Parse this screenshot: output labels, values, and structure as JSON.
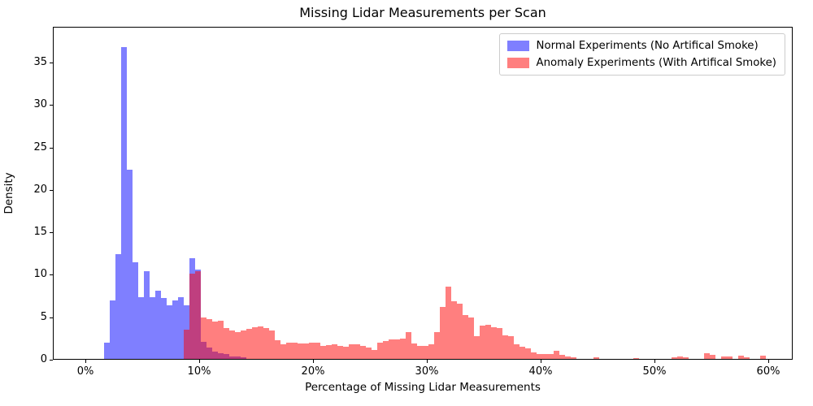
{
  "title": "Missing Lidar Measurements per Scan",
  "axes": {
    "xlabel": "Percentage of Missing Lidar Measurements",
    "ylabel": "Density",
    "x_ticks": [
      {
        "value": 0,
        "label": "0%"
      },
      {
        "value": 10,
        "label": "10%"
      },
      {
        "value": 20,
        "label": "20%"
      },
      {
        "value": 30,
        "label": "30%"
      },
      {
        "value": 40,
        "label": "40%"
      },
      {
        "value": 50,
        "label": "50%"
      },
      {
        "value": 60,
        "label": "60%"
      }
    ],
    "y_ticks": [
      {
        "value": 0,
        "label": "0"
      },
      {
        "value": 5,
        "label": "5"
      },
      {
        "value": 10,
        "label": "10"
      },
      {
        "value": 15,
        "label": "15"
      },
      {
        "value": 20,
        "label": "20"
      },
      {
        "value": 25,
        "label": "25"
      },
      {
        "value": 30,
        "label": "30"
      },
      {
        "value": 35,
        "label": "35"
      }
    ]
  },
  "legend": {
    "entries": [
      {
        "label": "Normal Experiments (No Artifical Smoke)",
        "color": "rgba(0,0,255,0.5)"
      },
      {
        "label": "Anomaly Experiments (With Artifical Smoke)",
        "color": "rgba(255,0,0,0.5)"
      }
    ]
  },
  "chart_data": {
    "type": "bar",
    "subtype": "overlapping-histograms",
    "title": "Missing Lidar Measurements per Scan",
    "xlabel": "Percentage of Missing Lidar Measurements",
    "ylabel": "Density",
    "xlim_percent": [
      -2.9,
      62.1
    ],
    "ylim": [
      0,
      39.2
    ],
    "grid": false,
    "legend_position": "upper right",
    "bin_width_percent": 0.5,
    "series": [
      {
        "name": "Normal Experiments (No Artifical Smoke)",
        "color": "rgba(0,0,255,0.5)",
        "bars_x_height": [
          [
            1.6,
            1.9
          ],
          [
            2.1,
            6.9
          ],
          [
            2.6,
            12.3
          ],
          [
            3.1,
            36.7
          ],
          [
            3.6,
            22.3
          ],
          [
            4.1,
            11.4
          ],
          [
            4.6,
            7.3
          ],
          [
            5.1,
            10.3
          ],
          [
            5.6,
            7.3
          ],
          [
            6.1,
            8.0
          ],
          [
            6.6,
            7.2
          ],
          [
            7.1,
            6.3
          ],
          [
            7.6,
            6.9
          ],
          [
            8.1,
            7.3
          ],
          [
            8.6,
            6.3
          ],
          [
            9.1,
            11.9
          ],
          [
            9.6,
            10.5
          ],
          [
            10.1,
            2.0
          ],
          [
            10.6,
            1.3
          ],
          [
            11.1,
            0.9
          ],
          [
            11.6,
            0.7
          ],
          [
            12.1,
            0.55
          ],
          [
            12.6,
            0.3
          ],
          [
            13.1,
            0.25
          ],
          [
            13.6,
            0.15
          ]
        ]
      },
      {
        "name": "Anomaly Experiments (With Artifical Smoke)",
        "color": "rgba(255,0,0,0.5)",
        "bars_x_height": [
          [
            8.6,
            3.4
          ],
          [
            9.1,
            10.0
          ],
          [
            9.6,
            10.3
          ],
          [
            10.1,
            4.85
          ],
          [
            10.6,
            4.7
          ],
          [
            11.1,
            4.4
          ],
          [
            11.6,
            4.5
          ],
          [
            12.1,
            3.6
          ],
          [
            12.6,
            3.3
          ],
          [
            13.1,
            3.15
          ],
          [
            13.6,
            3.3
          ],
          [
            14.1,
            3.5
          ],
          [
            14.6,
            3.7
          ],
          [
            15.1,
            3.85
          ],
          [
            15.6,
            3.6
          ],
          [
            16.1,
            3.3
          ],
          [
            16.6,
            2.2
          ],
          [
            17.1,
            1.7
          ],
          [
            17.6,
            1.9
          ],
          [
            18.1,
            1.95
          ],
          [
            18.6,
            1.8
          ],
          [
            19.1,
            1.85
          ],
          [
            19.6,
            1.9
          ],
          [
            20.1,
            1.9
          ],
          [
            20.6,
            1.55
          ],
          [
            21.1,
            1.65
          ],
          [
            21.6,
            1.7
          ],
          [
            22.1,
            1.5
          ],
          [
            22.6,
            1.45
          ],
          [
            23.1,
            1.7
          ],
          [
            23.6,
            1.75
          ],
          [
            24.1,
            1.5
          ],
          [
            24.6,
            1.35
          ],
          [
            25.1,
            1.1
          ],
          [
            25.6,
            1.95
          ],
          [
            26.1,
            2.1
          ],
          [
            26.6,
            2.25
          ],
          [
            27.1,
            2.25
          ],
          [
            27.6,
            2.35
          ],
          [
            28.1,
            3.15
          ],
          [
            28.6,
            1.8
          ],
          [
            29.1,
            1.55
          ],
          [
            29.6,
            1.55
          ],
          [
            30.1,
            1.7
          ],
          [
            30.6,
            3.2
          ],
          [
            31.1,
            6.1
          ],
          [
            31.6,
            8.5
          ],
          [
            32.1,
            6.75
          ],
          [
            32.6,
            6.5
          ],
          [
            33.1,
            5.2
          ],
          [
            33.6,
            4.9
          ],
          [
            34.1,
            2.65
          ],
          [
            34.6,
            3.95
          ],
          [
            35.1,
            4.0
          ],
          [
            35.6,
            3.7
          ],
          [
            36.1,
            3.6
          ],
          [
            36.6,
            2.8
          ],
          [
            37.1,
            2.7
          ],
          [
            37.6,
            1.7
          ],
          [
            38.1,
            1.4
          ],
          [
            38.6,
            1.25
          ],
          [
            39.1,
            0.77
          ],
          [
            39.6,
            0.55
          ],
          [
            40.1,
            0.55
          ],
          [
            40.6,
            0.6
          ],
          [
            41.1,
            0.92
          ],
          [
            41.6,
            0.5
          ],
          [
            42.1,
            0.3
          ],
          [
            42.6,
            0.2
          ],
          [
            44.6,
            0.2
          ],
          [
            48.1,
            0.13
          ],
          [
            51.4,
            0.22
          ],
          [
            51.9,
            0.25
          ],
          [
            52.4,
            0.22
          ],
          [
            54.3,
            0.7
          ],
          [
            54.8,
            0.45
          ],
          [
            55.8,
            0.25
          ],
          [
            56.3,
            0.25
          ],
          [
            57.3,
            0.38
          ],
          [
            57.8,
            0.2
          ],
          [
            59.2,
            0.35
          ]
        ]
      }
    ]
  }
}
